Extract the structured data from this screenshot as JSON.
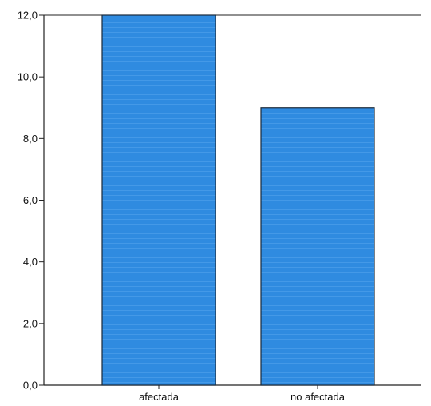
{
  "chart_data": {
    "type": "bar",
    "categories": [
      "afectada",
      "no afectada"
    ],
    "values": [
      12.0,
      9.0
    ],
    "ylim": [
      0,
      12
    ],
    "yticks": [
      "0,0",
      "2,0",
      "4,0",
      "6,0",
      "8,0",
      "10,0",
      "12,0"
    ],
    "title": "",
    "xlabel": "",
    "ylabel": "",
    "grid": false,
    "legend": false,
    "bar_color": "#2f8be0",
    "bar_edge_color": "#1a2a3a"
  }
}
